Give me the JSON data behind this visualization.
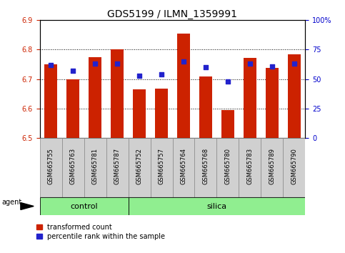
{
  "title": "GDS5199 / ILMN_1359991",
  "samples": [
    "GSM665755",
    "GSM665763",
    "GSM665781",
    "GSM665787",
    "GSM665752",
    "GSM665757",
    "GSM665764",
    "GSM665768",
    "GSM665780",
    "GSM665783",
    "GSM665789",
    "GSM665790"
  ],
  "groups": [
    "control",
    "control",
    "control",
    "control",
    "silica",
    "silica",
    "silica",
    "silica",
    "silica",
    "silica",
    "silica",
    "silica"
  ],
  "bar_values": [
    6.75,
    6.7,
    6.775,
    6.8,
    6.665,
    6.668,
    6.855,
    6.71,
    6.595,
    6.773,
    6.738,
    6.785
  ],
  "percentile_values": [
    62,
    57,
    63,
    63,
    53,
    54,
    65,
    60,
    48,
    63,
    61,
    63
  ],
  "ylim": [
    6.5,
    6.9
  ],
  "yticks": [
    6.5,
    6.6,
    6.7,
    6.8,
    6.9
  ],
  "right_yticks": [
    0,
    25,
    50,
    75,
    100
  ],
  "bar_color": "#cc2200",
  "dot_color": "#2222cc",
  "bar_width": 0.6,
  "group_control_color": "#90ee90",
  "group_silica_color": "#90ee90",
  "legend_bar_label": "transformed count",
  "legend_dot_label": "percentile rank within the sample",
  "left_tick_color": "#cc2200",
  "right_tick_color": "#0000cc",
  "title_fontsize": 10,
  "tick_fontsize": 7,
  "label_fontsize": 6,
  "group_label_fontsize": 8,
  "agent_fontsize": 7,
  "legend_fontsize": 7
}
